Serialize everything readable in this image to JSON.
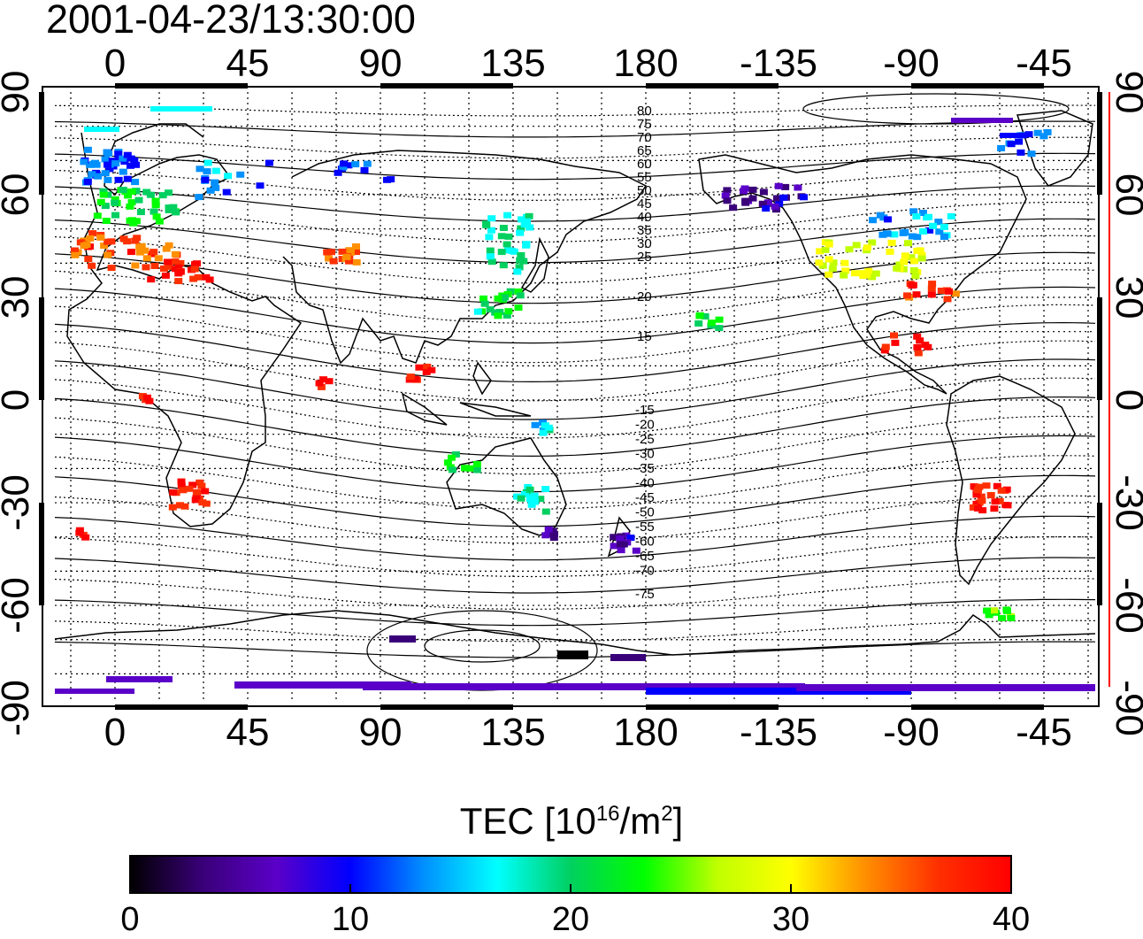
{
  "timestamp": "2001-04-23/13:30:00",
  "map": {
    "top_lon_ticks": [
      "0",
      "45",
      "90",
      "135",
      "180",
      "-135",
      "-90",
      "-45"
    ],
    "bottom_lon_ticks": [
      "0",
      "45",
      "90",
      "135",
      "180",
      "-135",
      "-90",
      "-45"
    ],
    "left_lat_ticks": [
      "90",
      "60",
      "30",
      "0",
      "-30",
      "-60",
      "-90"
    ],
    "right_lat_ticks": [
      "90",
      "60",
      "30",
      "0",
      "-30",
      "-60",
      "-90"
    ],
    "contour_labels_north": [
      "80",
      "75",
      "70",
      "65",
      "60",
      "55",
      "50",
      "45",
      "40",
      "35",
      "30",
      "25",
      "20",
      "15"
    ],
    "contour_labels_south": [
      "-15",
      "-20",
      "-25",
      "-30",
      "-35",
      "-40",
      "-45",
      "-50",
      "-55",
      "-60",
      "-65",
      "-70",
      "-75"
    ],
    "colors": {
      "frame": "#000000",
      "right_axis_line": "#ff0000",
      "coast": "#000000"
    }
  },
  "colorbar": {
    "title_prefix": "TEC  [10",
    "title_sup1": "16",
    "title_mid": "/m",
    "title_sup2": "2",
    "title_suffix": "]",
    "ticks": [
      "0",
      "10",
      "20",
      "30",
      "40"
    ],
    "range": [
      0,
      40
    ],
    "colors": [
      "#000000",
      "#3a007a",
      "#5a00c8",
      "#0000ff",
      "#0090ff",
      "#00ffff",
      "#00d060",
      "#00ff00",
      "#c0ff00",
      "#ffff00",
      "#ff9000",
      "#ff3000",
      "#ff0000"
    ]
  }
}
